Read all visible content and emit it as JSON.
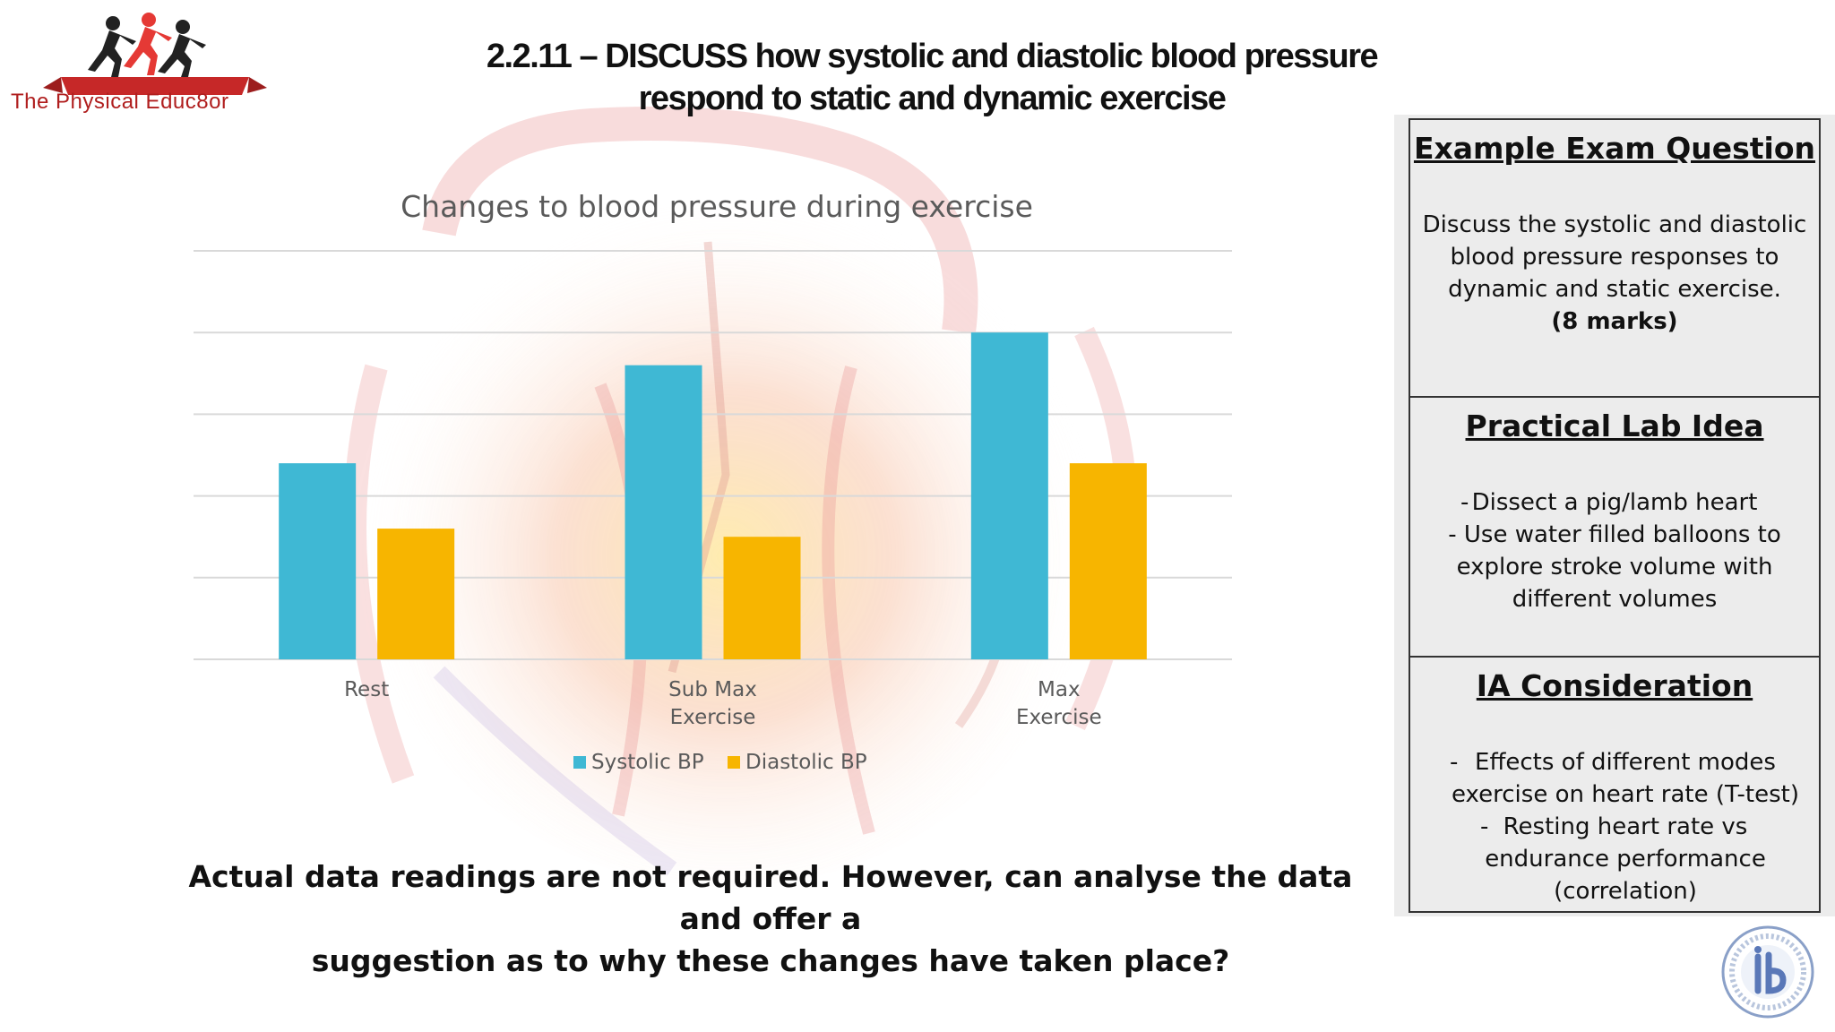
{
  "logo": {
    "text": "The Physical Educ8or"
  },
  "page": {
    "title_line1": "2.2.11 – DISCUSS how systolic and diastolic blood pressure",
    "title_line2": "respond to static and dynamic exercise"
  },
  "chart_data": {
    "type": "bar",
    "title": "Changes to blood pressure during exercise",
    "categories": [
      "Rest",
      "Sub Max Exercise",
      "Max Exercise"
    ],
    "category_lines": [
      [
        "Rest"
      ],
      [
        "Sub Max",
        "Exercise"
      ],
      [
        "Max",
        "Exercise"
      ]
    ],
    "series": [
      {
        "name": "Systolic BP",
        "color": "#3fb8d4",
        "values": [
          120,
          180,
          200
        ]
      },
      {
        "name": "Diastolic BP",
        "color": "#f7b500",
        "values": [
          80,
          75,
          120
        ]
      }
    ],
    "ylim": [
      0,
      250
    ],
    "grid": true,
    "yticks_visible": false,
    "legend": "bottom"
  },
  "footnote": {
    "line1": "Actual data readings are not required. However, can analyse the data and offer a",
    "line2": "suggestion as to why these changes have taken place?"
  },
  "side": {
    "exam": {
      "heading": "Example Exam Question",
      "lines": [
        "Discuss the systolic and diastolic",
        "blood pressure responses to",
        "dynamic and static exercise."
      ],
      "marks": "(8 marks)"
    },
    "lab": {
      "heading": "Practical Lab Idea",
      "item1": "Dissect a pig/lamb heart",
      "item2": "- Use water filled balloons to",
      "item2b": "explore stroke volume with",
      "item2c": "different volumes"
    },
    "ia": {
      "heading": "IA Consideration",
      "item1a": "Effects of different modes",
      "item1b": "exercise on heart rate (T-test)",
      "item2a": "Resting heart rate vs",
      "item2b": "endurance performance",
      "item2c": "(correlation)"
    }
  },
  "colors": {
    "accent_red": "#b01e1e",
    "systolic": "#3fb8d4",
    "diastolic": "#f7b500"
  },
  "icons": {
    "logo": "runners-logo-icon",
    "ib": "ib-seal-icon",
    "background": "heart-background-icon"
  }
}
